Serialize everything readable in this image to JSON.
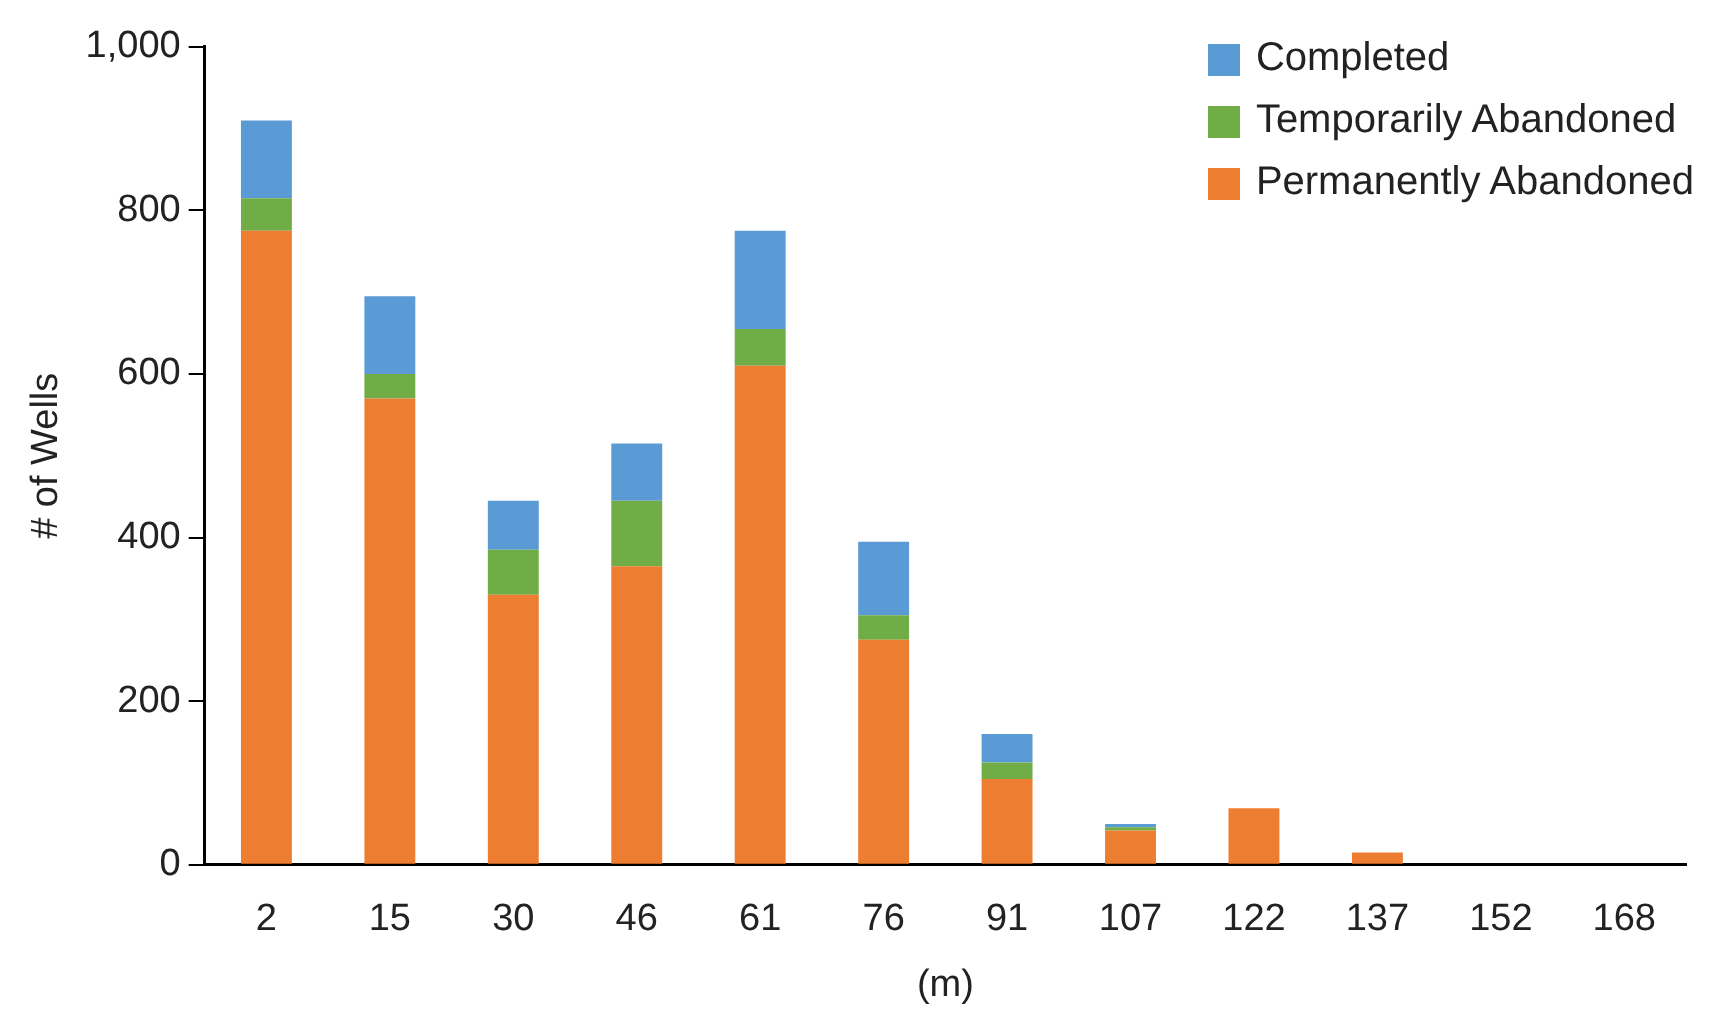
{
  "chart_data": {
    "type": "bar",
    "stacked": true,
    "xlabel": "(m)",
    "ylabel": "# of Wells",
    "categories": [
      "2",
      "15",
      "30",
      "46",
      "61",
      "76",
      "91",
      "107",
      "122",
      "137",
      "152",
      "168"
    ],
    "series": [
      {
        "name": "Permanently Abandoned",
        "color": "#ed7d31",
        "values": [
          775,
          570,
          330,
          365,
          610,
          275,
          105,
          42,
          69,
          15,
          0,
          0
        ]
      },
      {
        "name": "Temporarily Abandoned",
        "color": "#70ad47",
        "values": [
          40,
          30,
          55,
          80,
          45,
          30,
          20,
          4,
          0,
          0,
          0,
          0
        ]
      },
      {
        "name": "Completed",
        "color": "#5b9bd5",
        "values": [
          95,
          95,
          60,
          70,
          120,
          90,
          35,
          4,
          0,
          0,
          0,
          0
        ]
      }
    ],
    "ylim": [
      0,
      1000
    ],
    "yticks": [
      0,
      200,
      400,
      600,
      800,
      {
        "value": 1000,
        "label": "1,000"
      }
    ],
    "grid": false,
    "legend": "top right"
  }
}
